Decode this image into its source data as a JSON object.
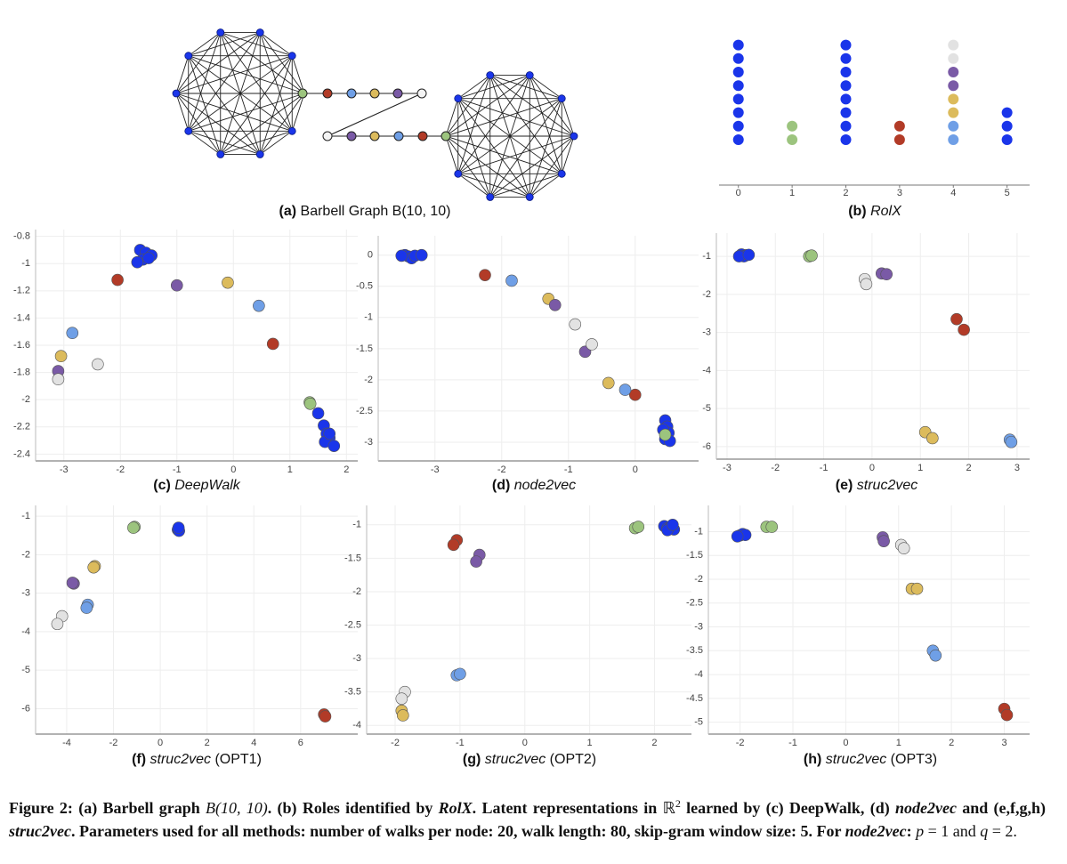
{
  "panel_a": {
    "label": "(a)",
    "title": "Barbell Graph B(10, 10)"
  },
  "chart_data": [
    {
      "type": "roles",
      "label": "(b)",
      "method": "RolX",
      "xlim": [
        -0.36,
        5.42
      ],
      "xticks": [
        0,
        1,
        2,
        3,
        4,
        5
      ],
      "series": [
        {
          "color": "#1a35ea",
          "x": [
            0,
            0,
            0,
            0,
            0,
            0,
            0,
            0,
            2,
            2,
            2,
            2,
            2,
            2,
            2,
            2,
            5,
            5,
            5
          ]
        },
        {
          "color": "#9cc47e",
          "x": [
            1,
            1
          ]
        },
        {
          "color": "#b23b27",
          "x": [
            3,
            3
          ]
        },
        {
          "color": "#6f9fe6",
          "x": [
            4,
            4
          ]
        },
        {
          "color": "#dcbb5c",
          "x": [
            4,
            4
          ]
        },
        {
          "color": "#7a5aa6",
          "x": [
            4,
            4
          ]
        },
        {
          "color": "#e2e2e2",
          "x": [
            4,
            4
          ]
        }
      ]
    },
    {
      "type": "scatter",
      "label": "(c)",
      "method": "DeepWalk",
      "xlim": [
        -3.5,
        2.2
      ],
      "ylim": [
        -2.45,
        -0.75
      ],
      "xticks": [
        -3,
        -2,
        -1,
        0,
        1,
        2
      ],
      "yticks": [
        -0.8,
        -1,
        -1.2,
        -1.4,
        -1.6,
        -1.8,
        -2,
        -2.2,
        -2.4
      ],
      "grid": true,
      "series": [
        {
          "color": "#1a35ea",
          "x": [
            -1.65,
            -1.55,
            -1.45,
            -1.6,
            -1.5,
            -1.7,
            1.5,
            1.6,
            1.65,
            1.7,
            1.62,
            1.78,
            1.7
          ],
          "y": [
            -0.9,
            -0.92,
            -0.94,
            -0.97,
            -0.96,
            -0.99,
            -2.1,
            -2.19,
            -2.25,
            -2.28,
            -2.31,
            -2.34,
            -2.25
          ]
        },
        {
          "color": "#b23b27",
          "x": [
            -2.05,
            0.7
          ],
          "y": [
            -1.12,
            -1.59
          ]
        },
        {
          "color": "#7a5aa6",
          "x": [
            -1.0,
            -3.1
          ],
          "y": [
            -1.16,
            -1.79
          ]
        },
        {
          "color": "#dcbb5c",
          "x": [
            -0.1,
            -3.05
          ],
          "y": [
            -1.14,
            -1.68
          ]
        },
        {
          "color": "#6f9fe6",
          "x": [
            0.45,
            -2.85
          ],
          "y": [
            -1.31,
            -1.51
          ]
        },
        {
          "color": "#e2e2e2",
          "x": [
            -2.4,
            -3.1
          ],
          "y": [
            -1.74,
            -1.85
          ]
        },
        {
          "color": "#9cc47e",
          "x": [
            1.35,
            1.36
          ],
          "y": [
            -2.02,
            -2.03
          ]
        }
      ]
    },
    {
      "type": "scatter",
      "label": "(d)",
      "method": "node2vec",
      "xlim": [
        -3.85,
        0.95
      ],
      "ylim": [
        -3.3,
        0.31
      ],
      "xticks": [
        -3,
        -2,
        -1,
        0
      ],
      "yticks": [
        0,
        -0.5,
        -1,
        -1.5,
        -2,
        -2.5,
        -3
      ],
      "grid": true,
      "series": [
        {
          "color": "#1a35ea",
          "x": [
            -3.45,
            -3.4,
            -3.35,
            -3.3,
            -3.5,
            -3.2,
            0.45,
            0.48,
            0.5,
            0.45,
            0.52,
            0.42
          ],
          "y": [
            0,
            -0.02,
            -0.05,
            -0.01,
            -0.01,
            0,
            -2.65,
            -2.75,
            -2.85,
            -2.95,
            -2.98,
            -2.8
          ]
        },
        {
          "color": "#b23b27",
          "x": [
            -2.25,
            0.0
          ],
          "y": [
            -0.32,
            -2.24
          ]
        },
        {
          "color": "#6f9fe6",
          "x": [
            -1.85,
            -0.15
          ],
          "y": [
            -0.41,
            -2.16
          ]
        },
        {
          "color": "#dcbb5c",
          "x": [
            -1.3,
            -0.4
          ],
          "y": [
            -0.7,
            -2.05
          ]
        },
        {
          "color": "#7a5aa6",
          "x": [
            -1.2,
            -0.75
          ],
          "y": [
            -0.8,
            -1.55
          ]
        },
        {
          "color": "#e2e2e2",
          "x": [
            -0.9,
            -0.65
          ],
          "y": [
            -1.11,
            -1.43
          ]
        },
        {
          "color": "#9cc47e",
          "x": [
            0.45
          ],
          "y": [
            -2.88
          ]
        }
      ]
    },
    {
      "type": "scatter",
      "label": "(e)",
      "method": "struc2vec",
      "xlim": [
        -3.22,
        3.26
      ],
      "ylim": [
        -6.33,
        -0.39
      ],
      "xticks": [
        -3,
        -2,
        -1,
        0,
        1,
        2,
        3
      ],
      "yticks": [
        -1,
        -2,
        -3,
        -4,
        -5,
        -6
      ],
      "grid": true,
      "series": [
        {
          "color": "#1a35ea",
          "x": [
            -2.7,
            -2.6,
            -2.65,
            -2.75,
            -2.55
          ],
          "y": [
            -0.95,
            -0.97,
            -1.0,
            -1.0,
            -0.96
          ]
        },
        {
          "color": "#9cc47e",
          "x": [
            -1.3,
            -1.25
          ],
          "y": [
            -1.0,
            -0.98
          ]
        },
        {
          "color": "#e2e2e2",
          "x": [
            -0.15,
            -0.12
          ],
          "y": [
            -1.6,
            -1.73
          ]
        },
        {
          "color": "#7a5aa6",
          "x": [
            0.2,
            0.3
          ],
          "y": [
            -1.45,
            -1.47
          ]
        },
        {
          "color": "#b23b27",
          "x": [
            1.75,
            1.9
          ],
          "y": [
            -2.65,
            -2.93
          ]
        },
        {
          "color": "#dcbb5c",
          "x": [
            1.1,
            1.25
          ],
          "y": [
            -5.62,
            -5.78
          ]
        },
        {
          "color": "#6f9fe6",
          "x": [
            2.85,
            2.88
          ],
          "y": [
            -5.82,
            -5.88
          ]
        }
      ]
    },
    {
      "type": "scatter",
      "label": "(f)",
      "method": "struc2vec",
      "variant": "(OPT1)",
      "xlim": [
        -5.33,
        8.44
      ],
      "ylim": [
        -6.66,
        -0.72
      ],
      "xticks": [
        -4,
        -2,
        0,
        2,
        4,
        6
      ],
      "yticks": [
        -1,
        -2,
        -3,
        -4,
        -5,
        -6
      ],
      "grid": true,
      "series": [
        {
          "color": "#9cc47e",
          "x": [
            -1.1,
            -1.15
          ],
          "y": [
            -1.28,
            -1.3
          ]
        },
        {
          "color": "#1a35ea",
          "x": [
            0.75,
            0.8,
            0.78
          ],
          "y": [
            -1.35,
            -1.38,
            -1.3
          ]
        },
        {
          "color": "#dcbb5c",
          "x": [
            -2.8,
            -2.85
          ],
          "y": [
            -2.3,
            -2.33
          ]
        },
        {
          "color": "#7a5aa6",
          "x": [
            -3.7,
            -3.75
          ],
          "y": [
            -2.75,
            -2.73
          ]
        },
        {
          "color": "#6f9fe6",
          "x": [
            -3.1,
            -3.15
          ],
          "y": [
            -3.3,
            -3.38
          ]
        },
        {
          "color": "#e2e2e2",
          "x": [
            -4.2,
            -4.4
          ],
          "y": [
            -3.6,
            -3.8
          ]
        },
        {
          "color": "#b23b27",
          "x": [
            7.0,
            7.05
          ],
          "y": [
            -6.15,
            -6.2
          ]
        }
      ]
    },
    {
      "type": "scatter",
      "label": "(g)",
      "method": "struc2vec",
      "variant": "(OPT2)",
      "xlim": [
        -2.44,
        2.57
      ],
      "ylim": [
        -4.13,
        -0.71
      ],
      "xticks": [
        -2,
        -1,
        0,
        1,
        2
      ],
      "yticks": [
        -1,
        -1.5,
        -2,
        -2.5,
        -3,
        -3.5,
        -4
      ],
      "grid": true,
      "series": [
        {
          "color": "#9cc47e",
          "x": [
            1.7,
            1.75
          ],
          "y": [
            -1.05,
            -1.03
          ]
        },
        {
          "color": "#1a35ea",
          "x": [
            2.15,
            2.2,
            2.25,
            2.3,
            2.2,
            2.28
          ],
          "y": [
            -1.02,
            -1.05,
            -1.03,
            -1.07,
            -1.08,
            -1.0
          ]
        },
        {
          "color": "#b23b27",
          "x": [
            -1.05,
            -1.1
          ],
          "y": [
            -1.23,
            -1.3
          ]
        },
        {
          "color": "#7a5aa6",
          "x": [
            -0.7,
            -0.75
          ],
          "y": [
            -1.45,
            -1.55
          ]
        },
        {
          "color": "#6f9fe6",
          "x": [
            -1.05,
            -1.0
          ],
          "y": [
            -3.25,
            -3.23
          ]
        },
        {
          "color": "#e2e2e2",
          "x": [
            -1.85,
            -1.9
          ],
          "y": [
            -3.5,
            -3.6
          ]
        },
        {
          "color": "#dcbb5c",
          "x": [
            -1.9,
            -1.88
          ],
          "y": [
            -3.78,
            -3.85
          ]
        }
      ]
    },
    {
      "type": "scatter",
      "label": "(h)",
      "method": "struc2vec",
      "variant": "(OPT3)",
      "xlim": [
        -2.6,
        3.48
      ],
      "ylim": [
        -5.25,
        -0.45
      ],
      "xticks": [
        -2,
        -1,
        0,
        1,
        2,
        3
      ],
      "yticks": [
        -1,
        -1.5,
        -2,
        -2.5,
        -3,
        -3.5,
        -4,
        -4.5,
        -5
      ],
      "grid": true,
      "series": [
        {
          "color": "#1a35ea",
          "x": [
            -2.0,
            -1.95,
            -1.9,
            -2.05
          ],
          "y": [
            -1.08,
            -1.05,
            -1.07,
            -1.1
          ]
        },
        {
          "color": "#9cc47e",
          "x": [
            -1.5,
            -1.4
          ],
          "y": [
            -0.9,
            -0.9
          ]
        },
        {
          "color": "#7a5aa6",
          "x": [
            0.7,
            0.72
          ],
          "y": [
            -1.12,
            -1.2
          ]
        },
        {
          "color": "#e2e2e2",
          "x": [
            1.05,
            1.1
          ],
          "y": [
            -1.28,
            -1.35
          ]
        },
        {
          "color": "#dcbb5c",
          "x": [
            1.25,
            1.35
          ],
          "y": [
            -2.2,
            -2.2
          ]
        },
        {
          "color": "#6f9fe6",
          "x": [
            1.65,
            1.7
          ],
          "y": [
            -3.5,
            -3.6
          ]
        },
        {
          "color": "#b23b27",
          "x": [
            3.0,
            3.05
          ],
          "y": [
            -4.72,
            -4.85
          ]
        }
      ]
    }
  ],
  "caption": [
    "Figure 2: (a) Barbell graph ",
    "B(10, 10)",
    ". (b) Roles identified by ",
    "RolX",
    ". Latent representations in ",
    "ℝ",
    "2",
    " learned by (c) DeepWalk, (d) ",
    "node2vec",
    " and (e,f,g,h) ",
    "struc2vec",
    ". Parameters used for all methods: number of walks per node: 20, walk length: 80, skip-gram window size: 5. For ",
    "node2vec",
    ": ",
    "p",
    " = 1 and ",
    "q",
    " = 2."
  ]
}
